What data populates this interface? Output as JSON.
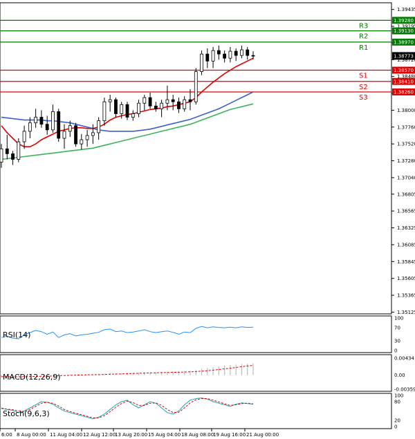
{
  "chart_data": {
    "type": "candlestick",
    "price_axis": {
      "ticks": [
        "1.39435",
        "1.39195",
        "1.38960",
        "1.38720",
        "1.38480",
        "1.38240",
        "1.38000",
        "1.37760",
        "1.37520",
        "1.37280",
        "1.37040",
        "1.36805",
        "1.36565",
        "1.36325",
        "1.36085",
        "1.35845",
        "1.35605",
        "1.35365",
        "1.35125"
      ],
      "ylim": [
        1.351,
        1.3953
      ]
    },
    "levels": [
      {
        "name": "R3",
        "value": 1.3928,
        "label": "1.39280",
        "color": "#007a00"
      },
      {
        "name": "R2",
        "value": 1.3913,
        "label": "1.39130",
        "color": "#007a00"
      },
      {
        "name": "R1",
        "value": 1.3897,
        "label": "1.38970",
        "color": "#007a00"
      },
      {
        "name": "S1",
        "value": 1.3857,
        "label": "1.38570",
        "color": "#e00000"
      },
      {
        "name": "S2",
        "value": 1.3841,
        "label": "1.38410",
        "color": "#e00000"
      },
      {
        "name": "S3",
        "value": 1.3826,
        "label": "1.38260",
        "color": "#e00000"
      }
    ],
    "last_price": "1.38773",
    "time_labels": [
      "6:00",
      "8 Aug 00:00",
      "11 Aug 04:00",
      "12 Aug 12:00",
      "13 Aug 20:00",
      "15 Aug 04:00",
      "18 Aug 08:00",
      "19 Aug 16:00",
      "21 Aug 00:00"
    ],
    "candles": [
      [
        1.3726,
        1.3752,
        1.3718,
        1.3745
      ],
      [
        1.3745,
        1.3765,
        1.373,
        1.3738
      ],
      [
        1.3738,
        1.3742,
        1.3722,
        1.373
      ],
      [
        1.373,
        1.376,
        1.3726,
        1.3755
      ],
      [
        1.3755,
        1.3778,
        1.3745,
        1.377
      ],
      [
        1.377,
        1.379,
        1.376,
        1.3782
      ],
      [
        1.3782,
        1.3802,
        1.3775,
        1.379
      ],
      [
        1.379,
        1.38,
        1.3775,
        1.378
      ],
      [
        1.378,
        1.3792,
        1.3765,
        1.3772
      ],
      [
        1.3772,
        1.3808,
        1.3768,
        1.3798
      ],
      [
        1.3798,
        1.3802,
        1.3755,
        1.376
      ],
      [
        1.376,
        1.378,
        1.3745,
        1.377
      ],
      [
        1.377,
        1.3785,
        1.3762,
        1.3778
      ],
      [
        1.3778,
        1.3782,
        1.3748,
        1.3752
      ],
      [
        1.3752,
        1.3766,
        1.3744,
        1.3758
      ],
      [
        1.3758,
        1.3772,
        1.3748,
        1.3764
      ],
      [
        1.3764,
        1.378,
        1.3752,
        1.3768
      ],
      [
        1.3768,
        1.379,
        1.3758,
        1.3785
      ],
      [
        1.3785,
        1.3818,
        1.3778,
        1.3812
      ],
      [
        1.3812,
        1.3822,
        1.3798,
        1.3815
      ],
      [
        1.3815,
        1.3818,
        1.379,
        1.3795
      ],
      [
        1.3795,
        1.3812,
        1.3788,
        1.3808
      ],
      [
        1.3808,
        1.3812,
        1.3786,
        1.379
      ],
      [
        1.379,
        1.38,
        1.3785,
        1.3795
      ],
      [
        1.3795,
        1.3815,
        1.379,
        1.381
      ],
      [
        1.381,
        1.3822,
        1.38,
        1.3818
      ],
      [
        1.3818,
        1.3825,
        1.3802,
        1.3806
      ],
      [
        1.3806,
        1.3812,
        1.3798,
        1.3802
      ],
      [
        1.3802,
        1.3815,
        1.379,
        1.381
      ],
      [
        1.381,
        1.3835,
        1.38,
        1.3815
      ],
      [
        1.3815,
        1.3822,
        1.38,
        1.3812
      ],
      [
        1.3812,
        1.3818,
        1.3796,
        1.3802
      ],
      [
        1.3802,
        1.382,
        1.3798,
        1.3815
      ],
      [
        1.3815,
        1.383,
        1.38,
        1.3812
      ],
      [
        1.3812,
        1.386,
        1.3808,
        1.3855
      ],
      [
        1.3855,
        1.3885,
        1.385,
        1.388
      ],
      [
        1.388,
        1.3888,
        1.386,
        1.387
      ],
      [
        1.387,
        1.389,
        1.386,
        1.3885
      ],
      [
        1.3885,
        1.3892,
        1.3872,
        1.388
      ],
      [
        1.388,
        1.3885,
        1.3868,
        1.3874
      ],
      [
        1.3874,
        1.389,
        1.3868,
        1.3884
      ],
      [
        1.3884,
        1.3888,
        1.387,
        1.3878
      ],
      [
        1.3878,
        1.3892,
        1.3874,
        1.3886
      ],
      [
        1.3886,
        1.389,
        1.3872,
        1.3878
      ],
      [
        1.3878,
        1.3884,
        1.3872,
        1.3877
      ]
    ],
    "ma_red": [
      1.3778,
      1.3768,
      1.376,
      1.3752,
      1.3748,
      1.3748,
      1.3752,
      1.3758,
      1.3762,
      1.3766,
      1.377,
      1.3772,
      1.3774,
      1.3775,
      1.3775,
      1.3774,
      1.3774,
      1.3776,
      1.378,
      1.3786,
      1.379,
      1.3792,
      1.3794,
      1.3795,
      1.3797,
      1.3799,
      1.3801,
      1.3802,
      1.3803,
      1.3805,
      1.3806,
      1.3808,
      1.381,
      1.3812,
      1.3818,
      1.3826,
      1.3833,
      1.384,
      1.3846,
      1.3852,
      1.3857,
      1.3862,
      1.3866,
      1.387,
      1.3874
    ],
    "ma_blue": [
      1.379,
      1.3789,
      1.3788,
      1.3787,
      1.3786,
      1.3786,
      1.3786,
      1.3786,
      1.3785,
      1.3785,
      1.3784,
      1.3783,
      1.3782,
      1.378,
      1.3778,
      1.3776,
      1.3774,
      1.3772,
      1.3771,
      1.377,
      1.377,
      1.377,
      1.377,
      1.377,
      1.3771,
      1.3772,
      1.3773,
      1.3775,
      1.3777,
      1.3779,
      1.3781,
      1.3783,
      1.3785,
      1.3787,
      1.379,
      1.3793,
      1.3796,
      1.3799,
      1.3802,
      1.3806,
      1.381,
      1.3814,
      1.3818,
      1.3822,
      1.3826
    ],
    "ma_green": [
      1.373,
      1.3731,
      1.3732,
      1.3733,
      1.3734,
      1.3735,
      1.3736,
      1.3737,
      1.3738,
      1.3739,
      1.374,
      1.3741,
      1.3742,
      1.3743,
      1.3744,
      1.3745,
      1.3746,
      1.3748,
      1.375,
      1.3752,
      1.3754,
      1.3756,
      1.3758,
      1.376,
      1.3762,
      1.3764,
      1.3766,
      1.3768,
      1.377,
      1.3772,
      1.3774,
      1.3776,
      1.3778,
      1.378,
      1.3783,
      1.3786,
      1.3789,
      1.3792,
      1.3795,
      1.3798,
      1.3801,
      1.3803,
      1.3805,
      1.3807,
      1.3809
    ],
    "rsi": {
      "label": "RSI(14)",
      "ticks": [
        "100",
        "70",
        "30",
        "0"
      ],
      "values": [
        40,
        44,
        38,
        36,
        48,
        55,
        62,
        58,
        50,
        57,
        40,
        48,
        52,
        45,
        48,
        50,
        53,
        56,
        64,
        66,
        58,
        60,
        55,
        57,
        60,
        64,
        58,
        55,
        58,
        60,
        56,
        50,
        57,
        55,
        68,
        74,
        70,
        73,
        71,
        70,
        72,
        70,
        73,
        71,
        72
      ]
    },
    "macd": {
      "label": "MACD(12,26,9)",
      "ticks": [
        "0.00434",
        "0.00",
        "-0.003597"
      ],
      "hist": [
        -0.0004,
        -0.0004,
        -0.0005,
        -0.0004,
        -0.0003,
        -0.0002,
        -0.0001,
        -5e-05,
        0.0,
        0.0001,
        0.0,
        0.0,
        0.0001,
        0.0001,
        0.0002,
        0.0002,
        0.0002,
        0.0003,
        0.0004,
        0.0005,
        0.0005,
        0.0005,
        0.0006,
        0.0006,
        0.0006,
        0.0007,
        0.0007,
        0.0007,
        0.0008,
        0.0008,
        0.0009,
        0.0009,
        0.001,
        0.0011,
        0.0013,
        0.0016,
        0.0018,
        0.002,
        0.0022,
        0.0024,
        0.0026,
        0.0027,
        0.0028,
        0.0029,
        0.003
      ]
    },
    "stoch": {
      "label": "Stoch(9,6,3)",
      "ticks": [
        "100",
        "80",
        "20",
        "0"
      ],
      "main": [
        60,
        55,
        52,
        45,
        50,
        60,
        70,
        80,
        78,
        72,
        60,
        50,
        45,
        40,
        35,
        30,
        25,
        30,
        40,
        55,
        70,
        80,
        85,
        70,
        60,
        70,
        80,
        75,
        60,
        45,
        40,
        50,
        70,
        85,
        90,
        92,
        88,
        80,
        75,
        70,
        65,
        72,
        76,
        74,
        72
      ],
      "signal": [
        58,
        56,
        54,
        50,
        48,
        55,
        65,
        75,
        78,
        75,
        66,
        55,
        48,
        43,
        38,
        33,
        28,
        28,
        35,
        48,
        62,
        74,
        82,
        77,
        68,
        68,
        75,
        76,
        68,
        55,
        45,
        46,
        60,
        76,
        86,
        90,
        90,
        85,
        79,
        73,
        68,
        70,
        74,
        75,
        73
      ]
    }
  }
}
